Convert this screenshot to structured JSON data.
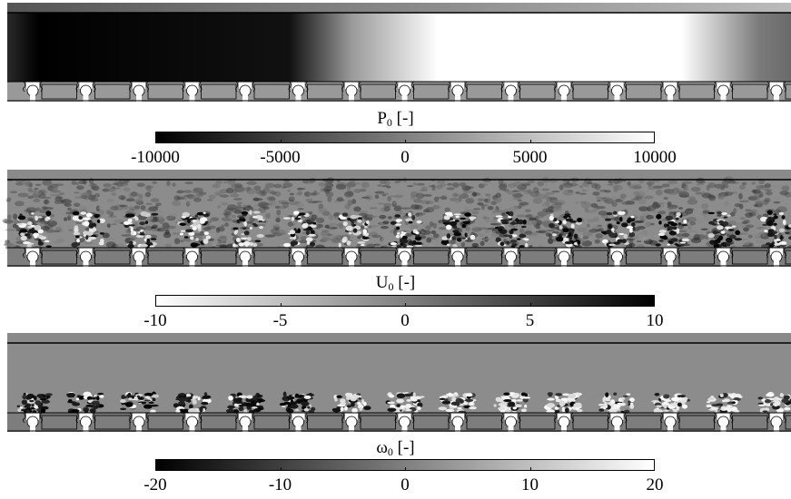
{
  "panels": [
    {
      "id": "pressure",
      "symbol": "P",
      "subscript": "0",
      "unit": "[-]",
      "ticks": [
        "-10000",
        "-5000",
        "0",
        "5000",
        "10000"
      ],
      "gradient": "light"
    },
    {
      "id": "velocity",
      "symbol": "U",
      "subscript": "0",
      "unit": "[-]",
      "ticks": [
        "-10",
        "-5",
        "0",
        "5",
        "10"
      ],
      "gradient": "dark"
    },
    {
      "id": "vorticity",
      "symbol": "ω",
      "subscript": "0",
      "unit": "[-]",
      "ticks": [
        "-20",
        "-10",
        "0",
        "10",
        "20"
      ],
      "gradient": "light"
    }
  ],
  "colors": {
    "field_background": "#8c8c8c",
    "wall": "#7a7a7a",
    "outline": "#000000",
    "min_light_scale": "#000000",
    "max_light_scale": "#ffffff"
  },
  "geometry_icons": [
    "cavity-array-icon"
  ]
}
